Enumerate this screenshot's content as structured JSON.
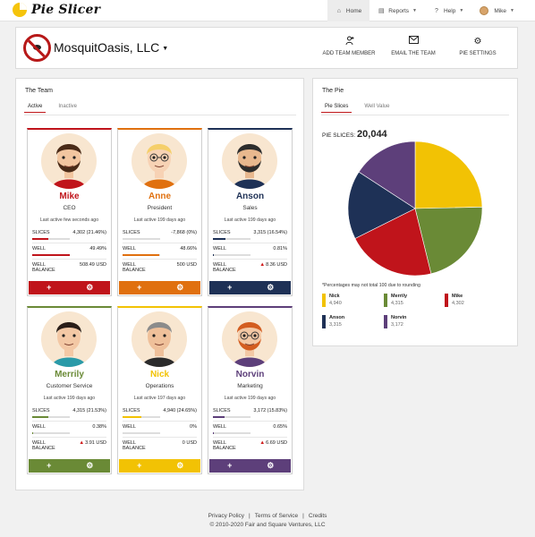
{
  "app": {
    "logo_text": "Pie Slicer"
  },
  "nav": {
    "home": "Home",
    "reports": "Reports",
    "help": "Help",
    "user": "Mike"
  },
  "company": {
    "name": "MosquitOasis, LLC",
    "actions": [
      {
        "label": "ADD TEAM MEMBER",
        "icon": "add-person-icon"
      },
      {
        "label": "EMAIL THE TEAM",
        "icon": "mail-icon"
      },
      {
        "label": "PIE SETTINGS",
        "icon": "gear-icon"
      }
    ]
  },
  "team": {
    "title": "The Team",
    "tabs": [
      "Active",
      "Inactive"
    ],
    "labels": {
      "slices": "SLICES",
      "well": "WELL",
      "well_balance_1": "WELL",
      "well_balance_2": "BALANCE"
    },
    "members": [
      {
        "name": "Mike",
        "role": "CEO",
        "last_active": "Last active few seconds ago",
        "slices": "4,302 (21.46%)",
        "slices_pct": 0.2146,
        "well": "49.49%",
        "well_pct": 0.4949,
        "balance": "508.49 USD",
        "balance_warning": false,
        "color": "#c0141b"
      },
      {
        "name": "Anne",
        "role": "President",
        "last_active": "Last active 199 days ago",
        "slices": "-7,868 (0%)",
        "slices_pct": 0,
        "well": "48.66%",
        "well_pct": 0.4866,
        "balance": "500 USD",
        "balance_warning": false,
        "color": "#e0700f"
      },
      {
        "name": "Anson",
        "role": "Sales",
        "last_active": "Last active 199 days ago",
        "slices": "3,315 (16.54%)",
        "slices_pct": 0.1654,
        "well": "0.81%",
        "well_pct": 0.0081,
        "balance": "8.36 USD",
        "balance_warning": true,
        "color": "#1e3156"
      },
      {
        "name": "Merrily",
        "role": "Customer Service",
        "last_active": "Last active 199 days ago",
        "slices": "4,315 (21.53%)",
        "slices_pct": 0.2153,
        "well": "0.38%",
        "well_pct": 0.0038,
        "balance": "3.91 USD",
        "balance_warning": true,
        "color": "#6a8a36"
      },
      {
        "name": "Nick",
        "role": "Operations",
        "last_active": "Last active 197 days ago",
        "slices": "4,940 (24.65%)",
        "slices_pct": 0.2465,
        "well": "0%",
        "well_pct": 0,
        "balance": "0 USD",
        "balance_warning": false,
        "color": "#f2c204"
      },
      {
        "name": "Norvin",
        "role": "Marketing",
        "last_active": "Last active 199 days ago",
        "slices": "3,172 (15.83%)",
        "slices_pct": 0.1583,
        "well": "0.65%",
        "well_pct": 0.0065,
        "balance": "6.69 USD",
        "balance_warning": true,
        "color": "#5d3f7a"
      }
    ]
  },
  "pie": {
    "title": "The Pie",
    "tabs": [
      "Pie Slices",
      "Well Value"
    ],
    "total_label": "PIE SLICES:",
    "total_value": "20,044",
    "note": "*Percentages may not total 100 due to rounding",
    "legend": [
      {
        "name": "Nick",
        "value": "4,940",
        "color": "#f2c204"
      },
      {
        "name": "Merrily",
        "value": "4,315",
        "color": "#6a8a36"
      },
      {
        "name": "Mike",
        "value": "4,302",
        "color": "#c0141b"
      },
      {
        "name": "Anson",
        "value": "3,315",
        "color": "#1e3156"
      },
      {
        "name": "Norvin",
        "value": "3,172",
        "color": "#5d3f7a"
      }
    ]
  },
  "chart_data": {
    "type": "pie",
    "categories": [
      "Nick",
      "Merrily",
      "Mike",
      "Anson",
      "Norvin"
    ],
    "values": [
      4940,
      4315,
      4302,
      3315,
      3172
    ],
    "colors": [
      "#f2c204",
      "#6a8a36",
      "#c0141b",
      "#1e3156",
      "#5d3f7a"
    ],
    "title": ""
  },
  "footer": {
    "privacy": "Privacy Policy",
    "terms": "Terms of Service",
    "credits": "Credits",
    "copyright": "© 2010-2020 Fair and Square Ventures, LLC"
  }
}
